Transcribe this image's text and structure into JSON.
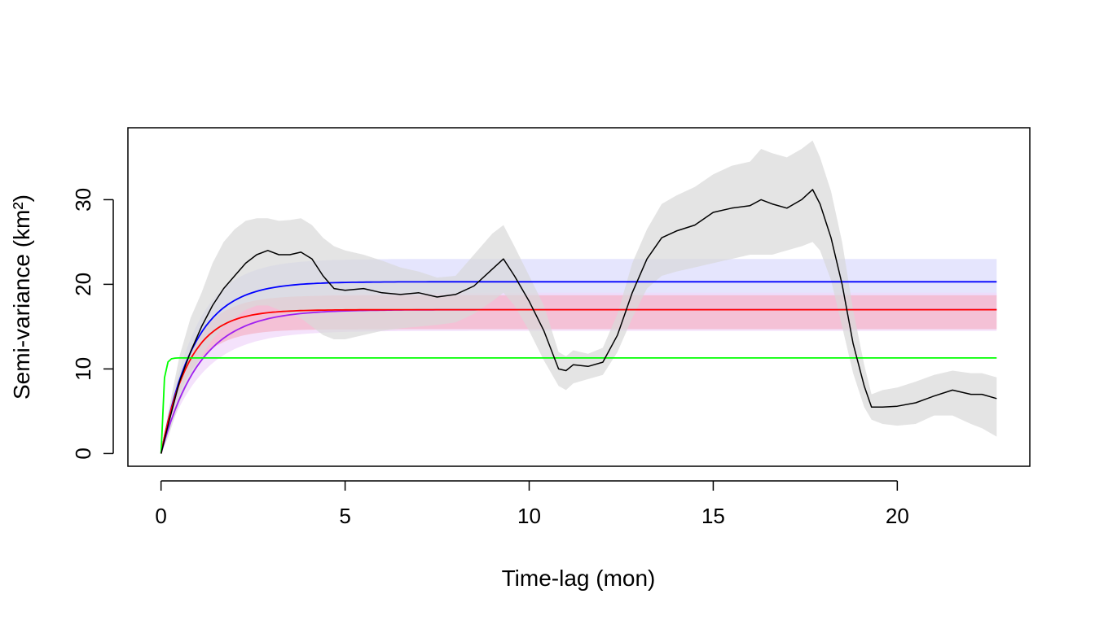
{
  "chart_data": {
    "type": "line",
    "title": "",
    "xlabel": "Time-lag (mon)",
    "ylabel": "Semi-variance (km²)",
    "xlim": [
      -0.9,
      23.6
    ],
    "ylim": [
      -1.5,
      38.5
    ],
    "x_ticks": [
      0,
      5,
      10,
      15,
      20
    ],
    "y_ticks": [
      0,
      10,
      20,
      30
    ],
    "grid": false,
    "legend": "none",
    "empirical": {
      "color": "#000000",
      "band_color": "#d9d9d9",
      "x": [
        0,
        0.2,
        0.5,
        0.8,
        1.1,
        1.4,
        1.7,
        2.0,
        2.3,
        2.6,
        2.9,
        3.2,
        3.5,
        3.8,
        4.1,
        4.4,
        4.7,
        5.0,
        5.5,
        6.0,
        6.5,
        7.0,
        7.5,
        8.0,
        8.5,
        9.0,
        9.3,
        9.6,
        10.0,
        10.4,
        10.8,
        11.0,
        11.2,
        11.6,
        12.0,
        12.4,
        12.8,
        13.2,
        13.6,
        14.0,
        14.5,
        15.0,
        15.5,
        16.0,
        16.3,
        16.6,
        17.0,
        17.4,
        17.7,
        17.9,
        18.2,
        18.5,
        18.8,
        19.1,
        19.3,
        19.6,
        20.0,
        20.5,
        21.0,
        21.5,
        22.0,
        22.3,
        22.7
      ],
      "value": [
        0,
        3.5,
        8.5,
        12.0,
        15.0,
        17.5,
        19.5,
        21.0,
        22.5,
        23.5,
        24.0,
        23.5,
        23.5,
        23.8,
        23.0,
        21.0,
        19.5,
        19.3,
        19.5,
        19.0,
        18.8,
        19.0,
        18.5,
        18.8,
        19.8,
        21.8,
        23.0,
        21.0,
        18.0,
        14.5,
        10.0,
        9.8,
        10.5,
        10.3,
        10.8,
        14.0,
        19.0,
        23.0,
        25.5,
        26.3,
        27.0,
        28.5,
        29.0,
        29.3,
        30.0,
        29.5,
        29.0,
        30.0,
        31.2,
        29.5,
        25.5,
        20.0,
        13.0,
        8.0,
        5.5,
        5.5,
        5.6,
        6.0,
        6.8,
        7.5,
        7.0,
        7.0,
        6.5
      ],
      "lower": [
        0,
        2.0,
        6.0,
        9.0,
        11.5,
        13.5,
        15.0,
        16.0,
        17.0,
        17.5,
        17.5,
        17.0,
        16.5,
        16.0,
        15.0,
        14.0,
        13.5,
        13.5,
        14.0,
        14.5,
        14.8,
        15.0,
        15.2,
        15.5,
        16.5,
        18.0,
        19.0,
        17.5,
        14.5,
        11.0,
        8.0,
        7.5,
        8.3,
        8.8,
        9.3,
        12.0,
        16.0,
        19.5,
        21.0,
        21.5,
        22.0,
        22.5,
        23.0,
        23.5,
        23.5,
        23.5,
        24.0,
        24.5,
        25.0,
        24.0,
        20.5,
        15.0,
        9.5,
        5.5,
        4.0,
        3.5,
        3.3,
        3.5,
        4.5,
        4.5,
        3.5,
        3.0,
        2.0
      ],
      "upper": [
        0,
        5.0,
        11.5,
        16.0,
        19.0,
        22.5,
        25.0,
        26.5,
        27.5,
        27.8,
        27.8,
        27.5,
        27.6,
        27.8,
        27.0,
        25.5,
        24.5,
        24.0,
        23.5,
        22.8,
        22.0,
        21.5,
        20.8,
        21.0,
        23.5,
        26.0,
        27.0,
        24.5,
        21.0,
        17.5,
        12.0,
        11.5,
        12.2,
        11.8,
        12.5,
        16.5,
        22.5,
        26.5,
        29.5,
        30.5,
        31.5,
        33.0,
        34.0,
        34.5,
        36.0,
        35.5,
        35.0,
        36.0,
        37.0,
        35.0,
        31.0,
        25.0,
        17.0,
        10.5,
        7.0,
        7.5,
        7.8,
        8.5,
        9.3,
        9.8,
        9.5,
        9.5,
        9.0
      ]
    },
    "fits": [
      {
        "color": "#0000ff",
        "band_color": "#dcdcfc",
        "sill": 20.3,
        "lower": 17.5,
        "upper": 23.0,
        "tau": 0.9
      },
      {
        "color": "#a020f0",
        "band_color": "#f0d8fa",
        "sill": 17.0,
        "lower": 14.5,
        "upper": 19.0,
        "tau": 1.05
      },
      {
        "color": "#ff0000",
        "band_color": "#f4b6ca",
        "sill": 17.0,
        "lower": 14.7,
        "upper": 18.7,
        "tau": 0.75
      },
      {
        "color": "#00ff00",
        "band_color": null,
        "sill": 11.3,
        "lower": null,
        "upper": null,
        "tau": 0.06
      }
    ],
    "x_max": 22.7
  }
}
